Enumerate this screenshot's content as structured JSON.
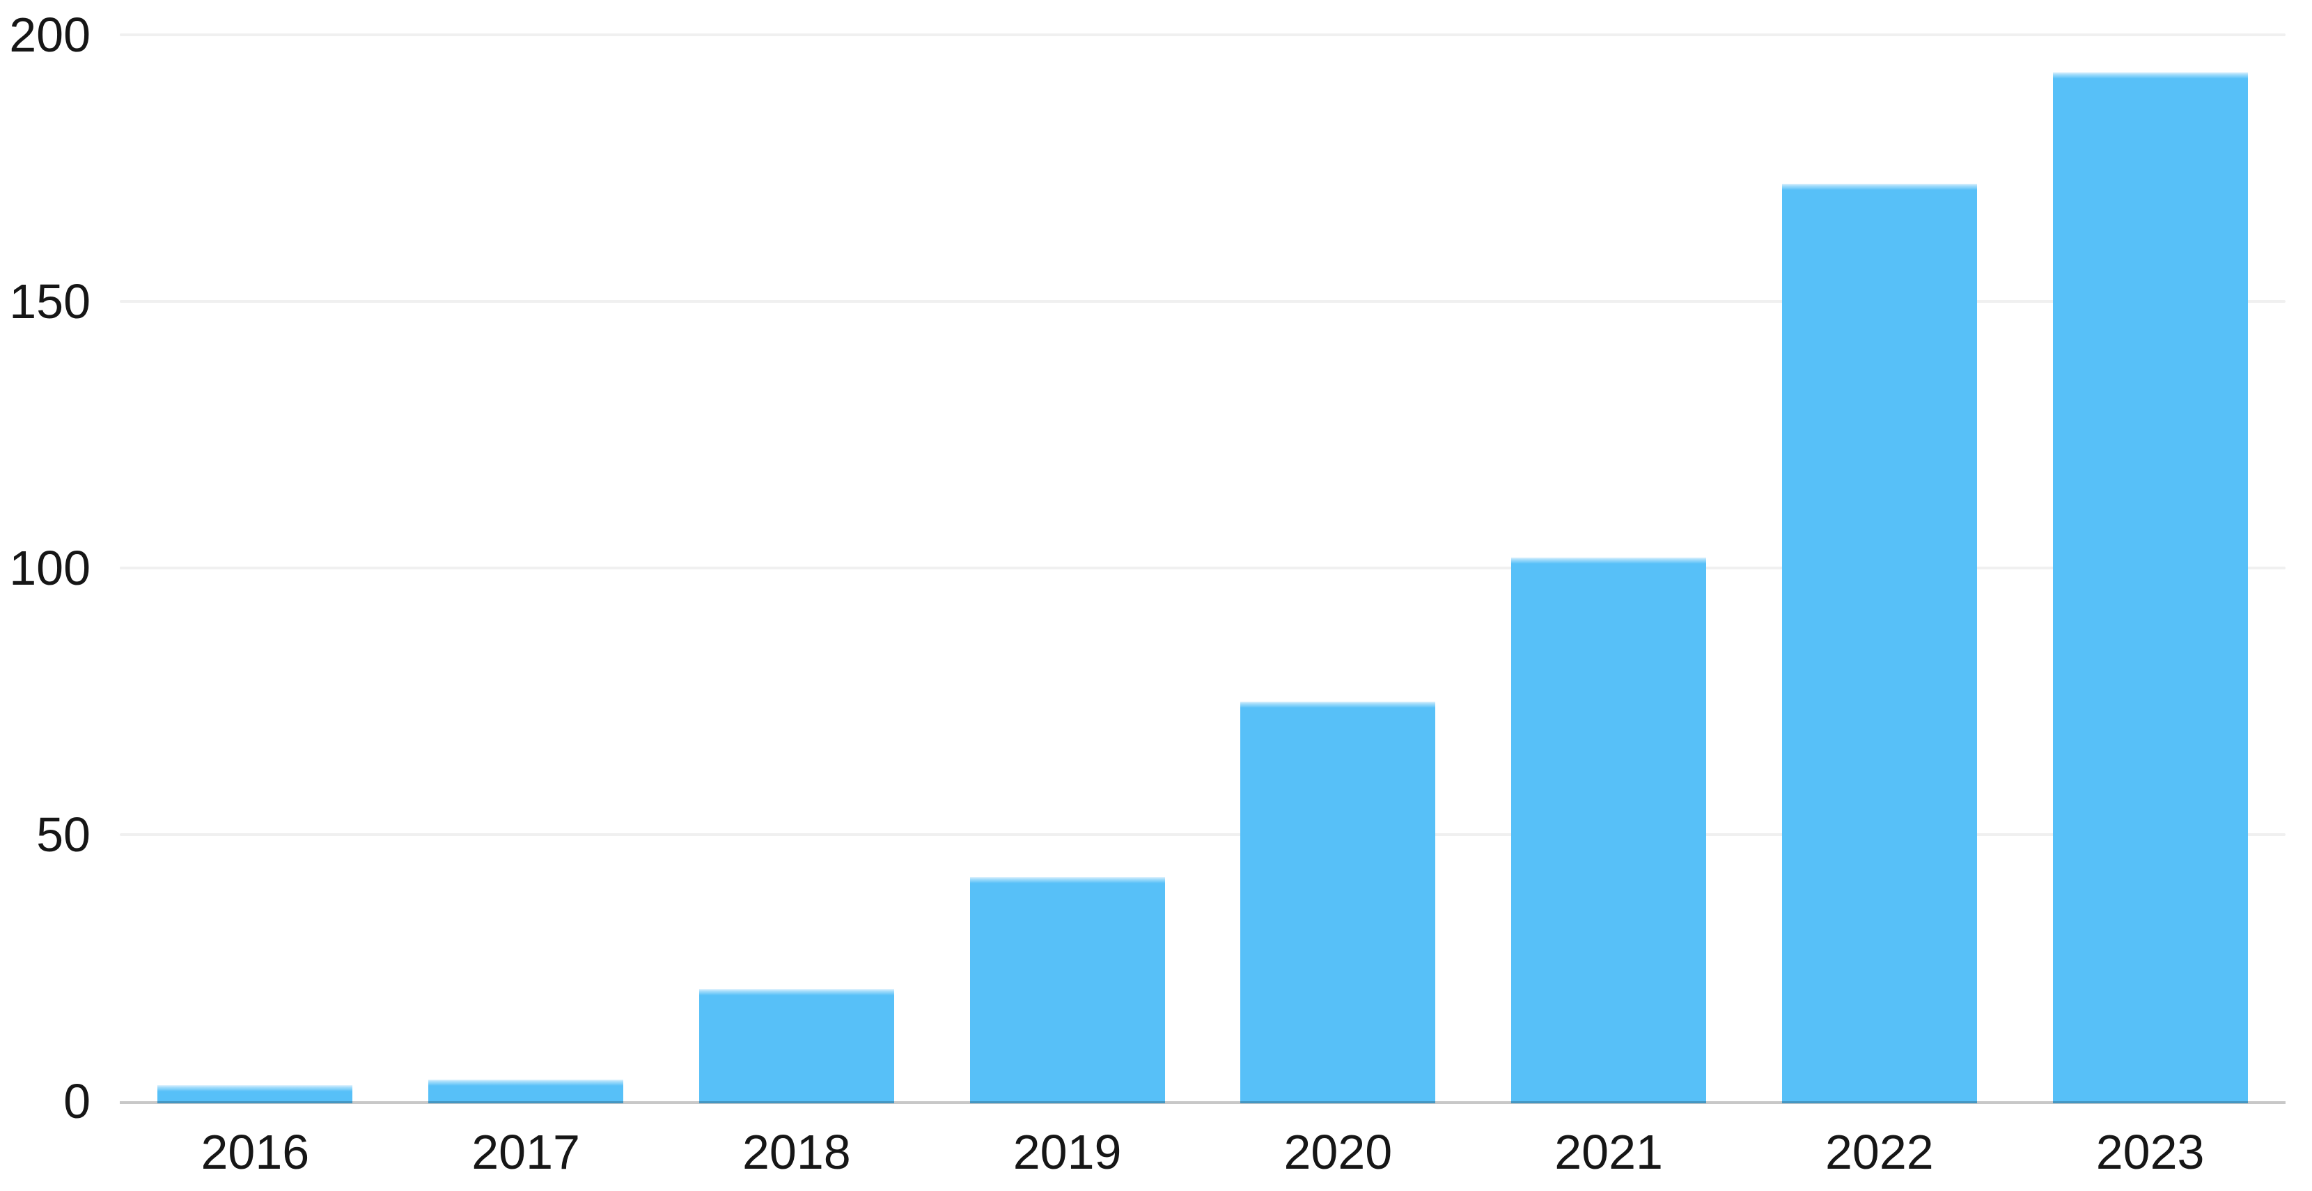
{
  "chart_data": {
    "type": "bar",
    "title": "",
    "xlabel": "",
    "ylabel": "",
    "categories": [
      "2016",
      "2017",
      "2018",
      "2019",
      "2020",
      "2021",
      "2022",
      "2023"
    ],
    "values": [
      3,
      4,
      21,
      42,
      75,
      102,
      172,
      193
    ],
    "y_ticks": [
      0,
      50,
      100,
      150,
      200
    ],
    "ylim": [
      0,
      200
    ],
    "grid": "horizontal",
    "legend": "none",
    "colors": {
      "bar_fill": "#57C0F8",
      "bar_top_highlight": "#DDF1FE",
      "bar_top_highlight_mid": "#A5DDFB",
      "gridline": "#F0F0F0",
      "axis_line": "#C9C9C9",
      "tick_text": "#161616",
      "background": "#FFFFFF"
    }
  }
}
